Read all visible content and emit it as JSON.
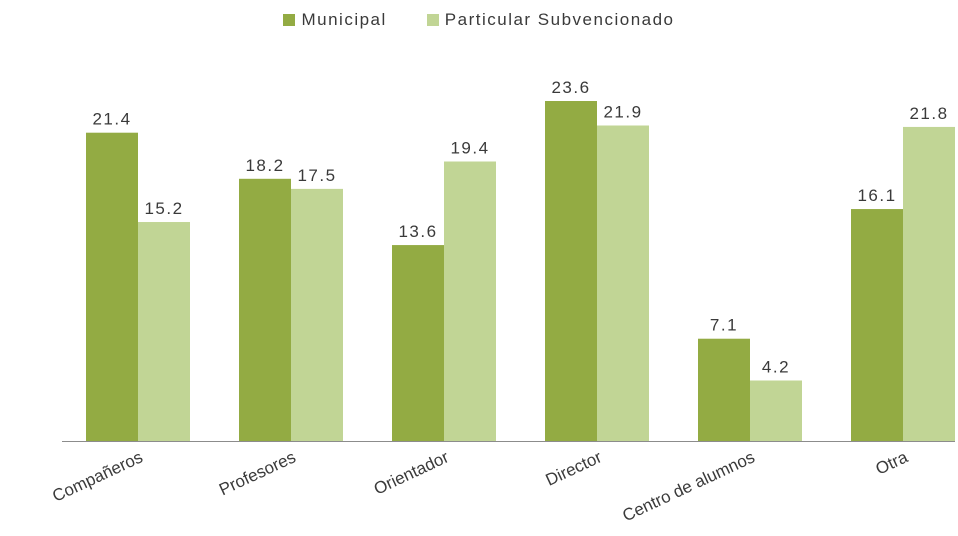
{
  "colors": {
    "municipal": "#93ab43",
    "particular": "#c1d595",
    "axis": "#8c8c8c"
  },
  "chart_data": {
    "type": "bar",
    "categories": [
      "Compañeros",
      "Profesores",
      "Orientador",
      "Director",
      "Centro de alumnos",
      "Otra"
    ],
    "series": [
      {
        "name": "Municipal",
        "values": [
          21.4,
          18.2,
          13.6,
          23.6,
          7.1,
          16.1
        ]
      },
      {
        "name": "Particular Subvencionado",
        "values": [
          15.2,
          17.5,
          19.4,
          21.9,
          4.2,
          21.8
        ]
      }
    ],
    "ylim": [
      0,
      23.6
    ],
    "grid": false,
    "legend_position": "top-center"
  }
}
